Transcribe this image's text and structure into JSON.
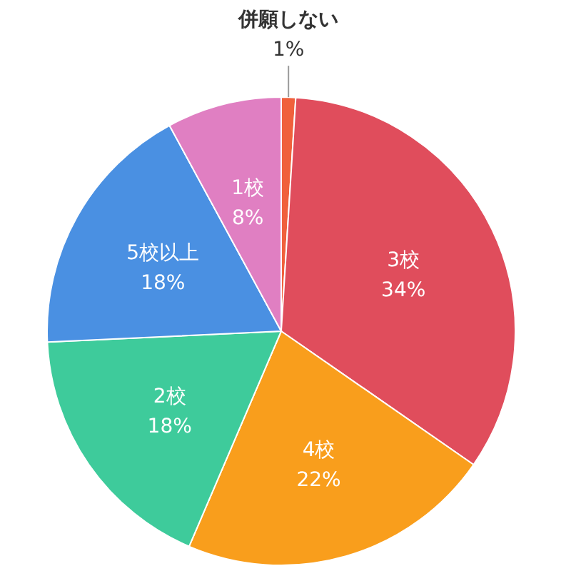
{
  "chart_data": {
    "type": "pie",
    "categories": [
      "併願しない",
      "3校",
      "4校",
      "2校",
      "5校以上",
      "1校"
    ],
    "values": [
      1,
      34,
      22,
      18,
      18,
      8
    ],
    "value_labels": [
      "1%",
      "34%",
      "22%",
      "18%",
      "18%",
      "8%"
    ],
    "colors": [
      "#f0603c",
      "#e04d5c",
      "#f99e1c",
      "#3ecb9b",
      "#4a90e2",
      "#e07fc2"
    ]
  }
}
